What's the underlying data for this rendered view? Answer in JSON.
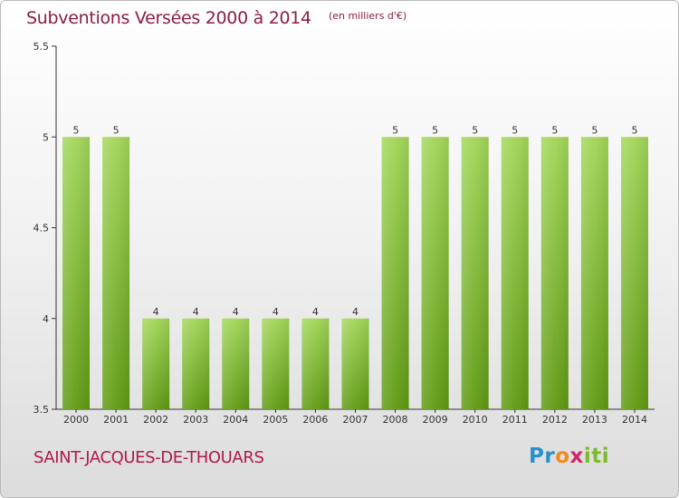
{
  "title": "Subventions Versées 2000 à 2014",
  "subtitle": "(en milliers d'€)",
  "commune": "SAINT-JACQUES-DE-THOUARS",
  "brand": {
    "text": "Proxiti"
  },
  "colors": {
    "bar_light": "#9ed24f",
    "bar_dark": "#5f9a12",
    "title": "#8b1d44",
    "commune": "#b0194f"
  },
  "chart_data": {
    "type": "bar",
    "categories": [
      "2000",
      "2001",
      "2002",
      "2003",
      "2004",
      "2005",
      "2006",
      "2007",
      "2008",
      "2009",
      "2010",
      "2011",
      "2012",
      "2013",
      "2014"
    ],
    "values": [
      5,
      5,
      4,
      4,
      4,
      4,
      4,
      4,
      5,
      5,
      5,
      5,
      5,
      5,
      5
    ],
    "data_labels": [
      "5",
      "5",
      "4",
      "4",
      "4",
      "4",
      "4",
      "4",
      "5",
      "5",
      "5",
      "5",
      "5",
      "5",
      "5"
    ],
    "ylim": [
      3.5,
      5.5
    ],
    "yticks": [
      "3.5",
      "4",
      "4.5",
      "5",
      "5.5"
    ],
    "grid": false,
    "legend": "none"
  }
}
